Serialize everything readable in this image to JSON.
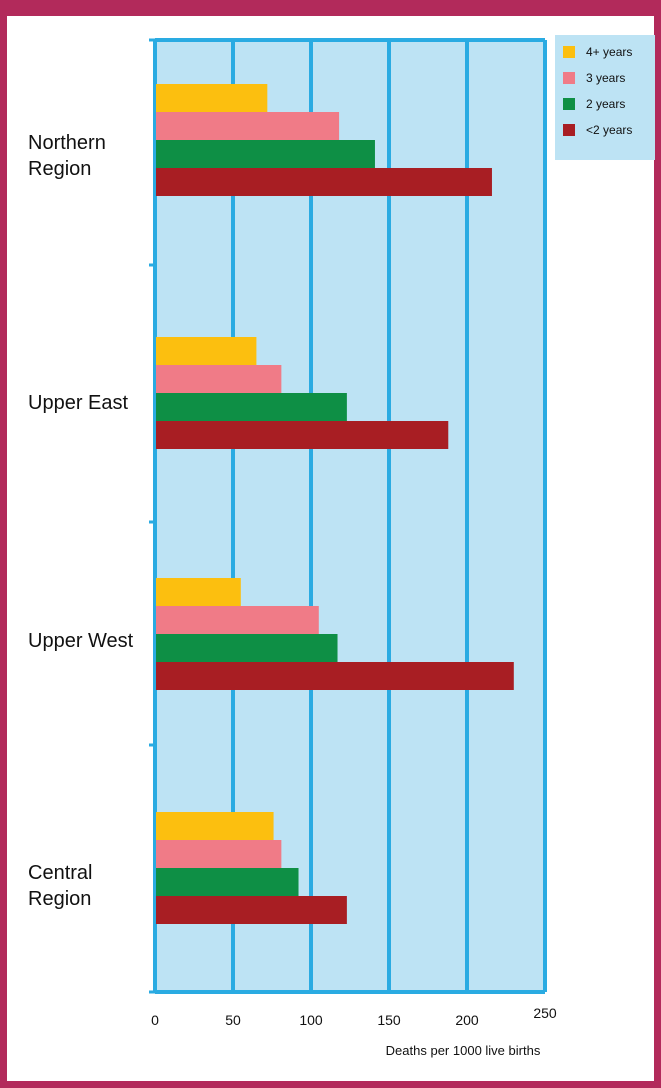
{
  "chart_data": {
    "type": "bar",
    "orientation": "horizontal",
    "title": "",
    "xlabel": "Deaths per 1000 live births",
    "ylabel": "",
    "xlim": [
      0,
      250
    ],
    "x_ticks": [
      0,
      50,
      100,
      150,
      200,
      250
    ],
    "grid": true,
    "legend_position": "top-right",
    "categories": [
      "Northern\nRegion",
      "Upper East",
      "Upper West",
      "Central\nRegion"
    ],
    "series": [
      {
        "name": "4+ years",
        "color": "#fcbf0f",
        "values": [
          72,
          65,
          55,
          76
        ]
      },
      {
        "name": "3 years",
        "color": "#f07b87",
        "values": [
          118,
          81,
          105,
          81
        ]
      },
      {
        "name": "2 years",
        "color": "#0e8f45",
        "values": [
          141,
          123,
          117,
          92
        ]
      },
      {
        "name": "<2 years",
        "color": "#a81e23",
        "values": [
          216,
          188,
          230,
          123
        ]
      }
    ],
    "colors": {
      "plot_background": "#bde3f4",
      "grid": "#2aabe2",
      "frame": "#b22a5b"
    }
  }
}
